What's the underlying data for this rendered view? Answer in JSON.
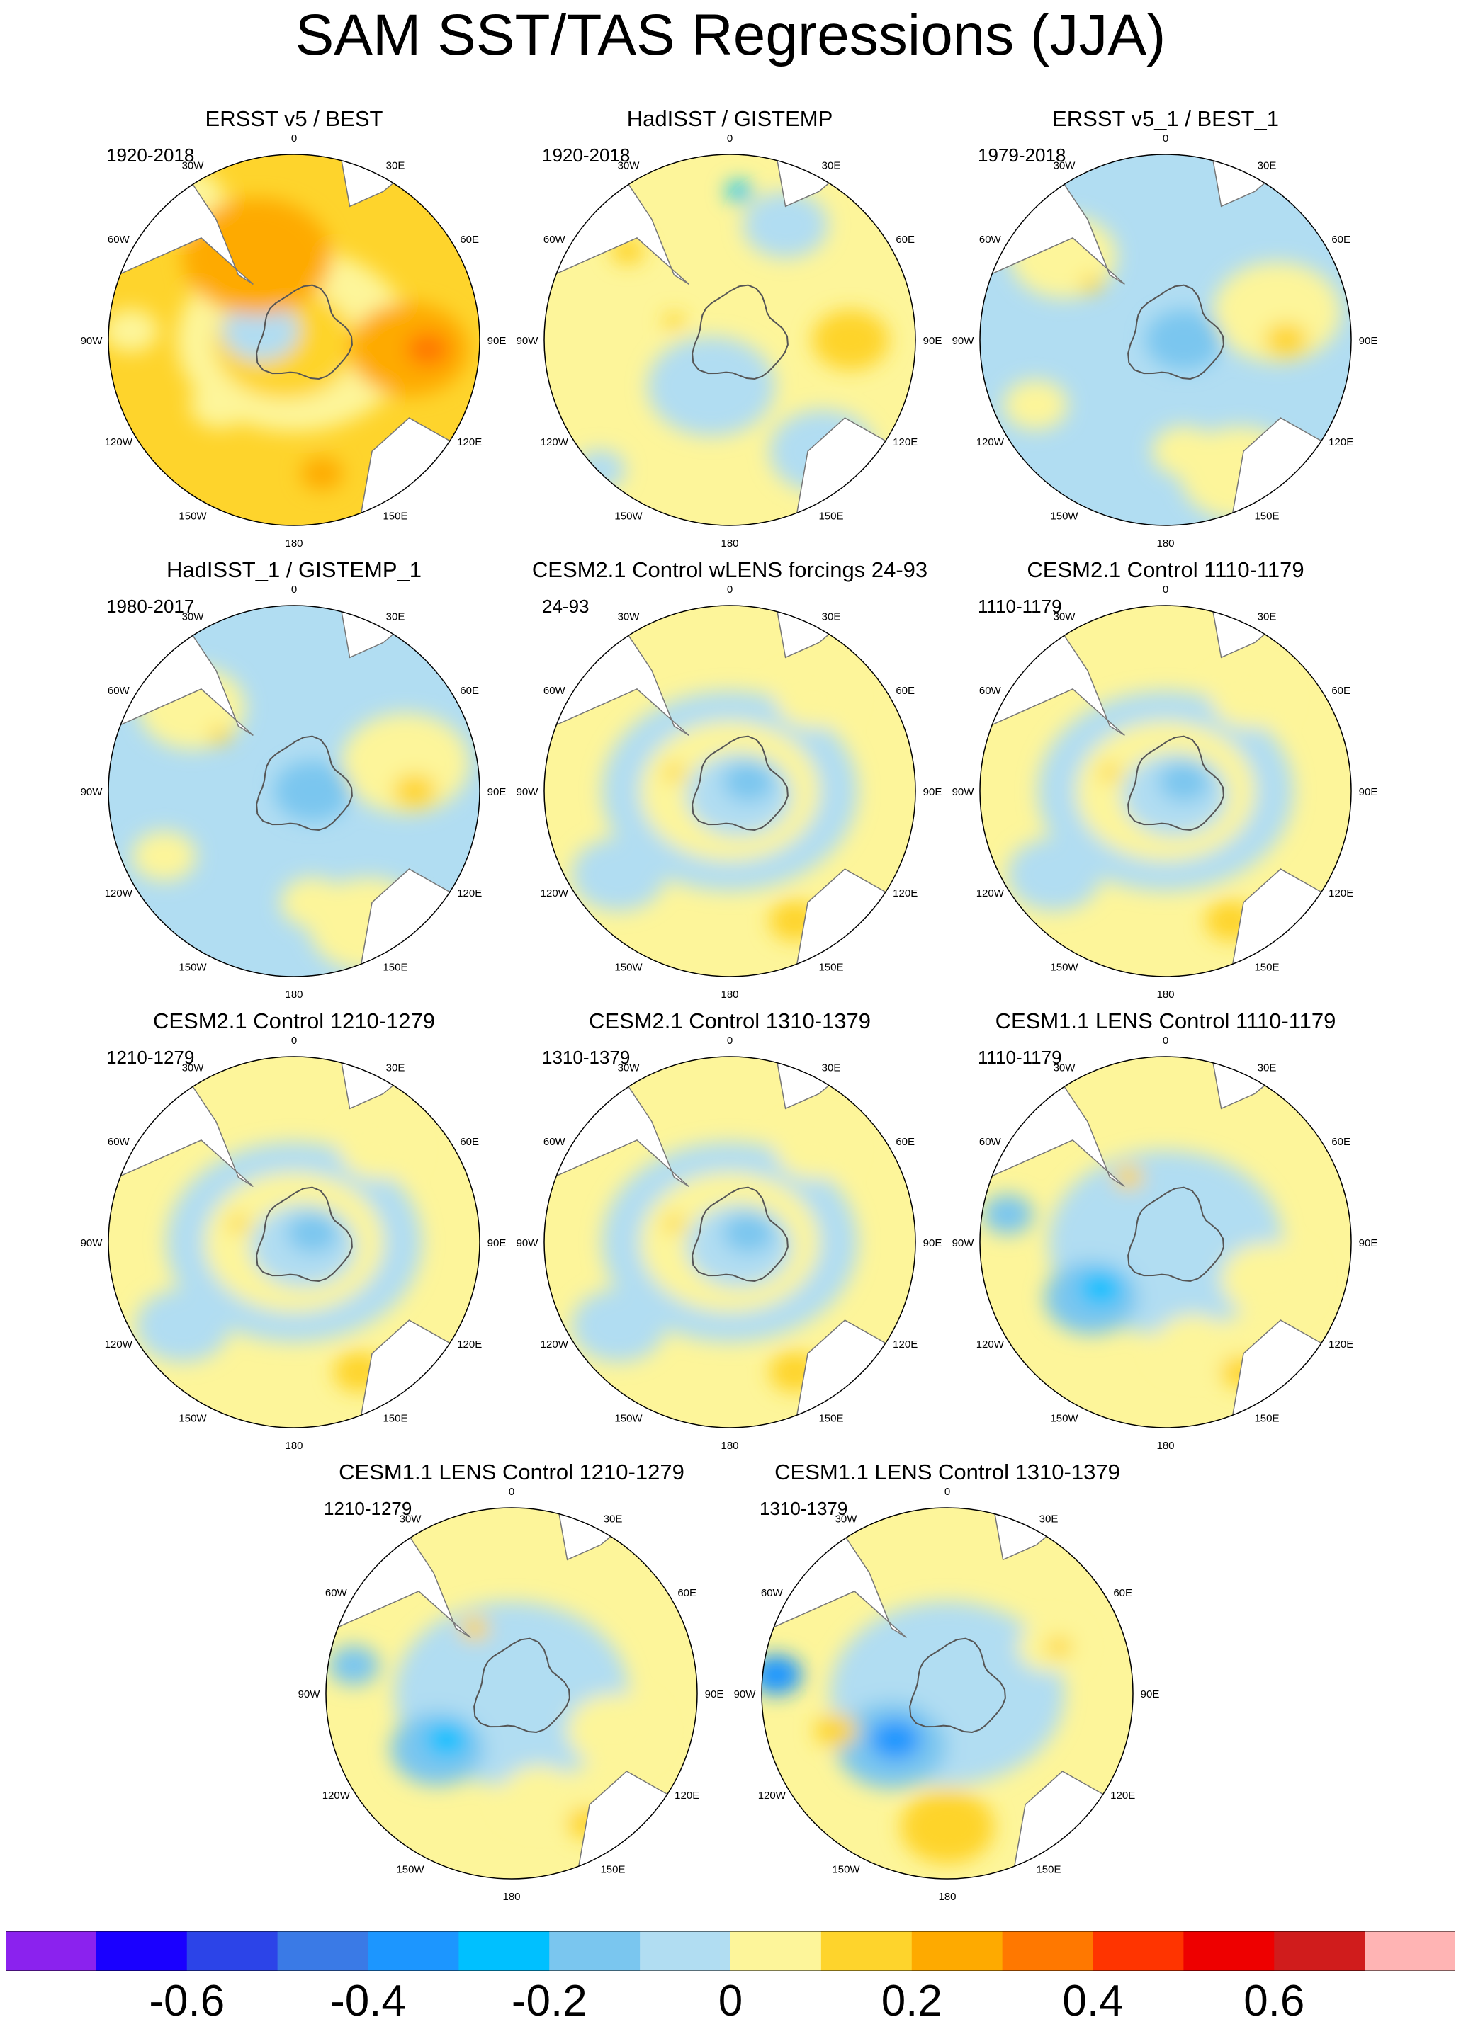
{
  "title": "SAM SST/TAS Regressions (JJA)",
  "longitude_labels": [
    "0",
    "30E",
    "60E",
    "90E",
    "120E",
    "150E",
    "180",
    "150W",
    "120W",
    "90W",
    "60W",
    "30W"
  ],
  "panels": [
    {
      "title": "ERSST v5 / BEST",
      "period": "1920-2018",
      "pattern": "warm-strong"
    },
    {
      "title": "HadISST / GISTEMP",
      "period": "1920-2018",
      "pattern": "mixed"
    },
    {
      "title": "ERSST v5_1 / BEST_1",
      "period": "1979-2018",
      "pattern": "mixed-cool"
    },
    {
      "title": "HadISST_1 / GISTEMP_1",
      "period": "1980-2017",
      "pattern": "mixed-cool"
    },
    {
      "title": "CESM2.1 Control wLENS forcings 24-93",
      "period": "24-93",
      "pattern": "ring"
    },
    {
      "title": "CESM2.1 Control 1110-1179",
      "period": "1110-1179",
      "pattern": "ring"
    },
    {
      "title": "CESM2.1 Control 1210-1279",
      "period": "1210-1279",
      "pattern": "ring"
    },
    {
      "title": "CESM2.1 Control 1310-1379",
      "period": "1310-1379",
      "pattern": "ring"
    },
    {
      "title": "CESM1.1 LENS Control 1110-1179",
      "period": "1110-1179",
      "pattern": "dipole"
    },
    {
      "title": "CESM1.1 LENS Control 1210-1279",
      "period": "1210-1279",
      "pattern": "dipole"
    },
    {
      "title": "CESM1.1 LENS Control 1310-1379",
      "period": "1310-1379",
      "pattern": "dipole-strong"
    }
  ],
  "colorbar": {
    "colors": [
      "#8b22ee",
      "#1a00ff",
      "#2c44e8",
      "#3a7ae6",
      "#1c96ff",
      "#00c0ff",
      "#7ac6ef",
      "#b1ddf2",
      "#fdf59a",
      "#fed42c",
      "#feaa00",
      "#ff7800",
      "#ff3400",
      "#ee0000",
      "#d01c1c",
      "#ffb4b4"
    ],
    "labels": [
      "-0.6",
      "-0.4",
      "-0.2",
      "0",
      "0.2",
      "0.4",
      "0.6"
    ],
    "label_values": [
      -0.6,
      -0.4,
      -0.2,
      0,
      0.2,
      0.4,
      0.6
    ],
    "boundaries": [
      -0.7,
      -0.6,
      -0.5,
      -0.4,
      -0.3,
      -0.2,
      -0.1,
      0,
      0.1,
      0.2,
      0.3,
      0.4,
      0.5,
      0.6,
      0.7
    ]
  }
}
